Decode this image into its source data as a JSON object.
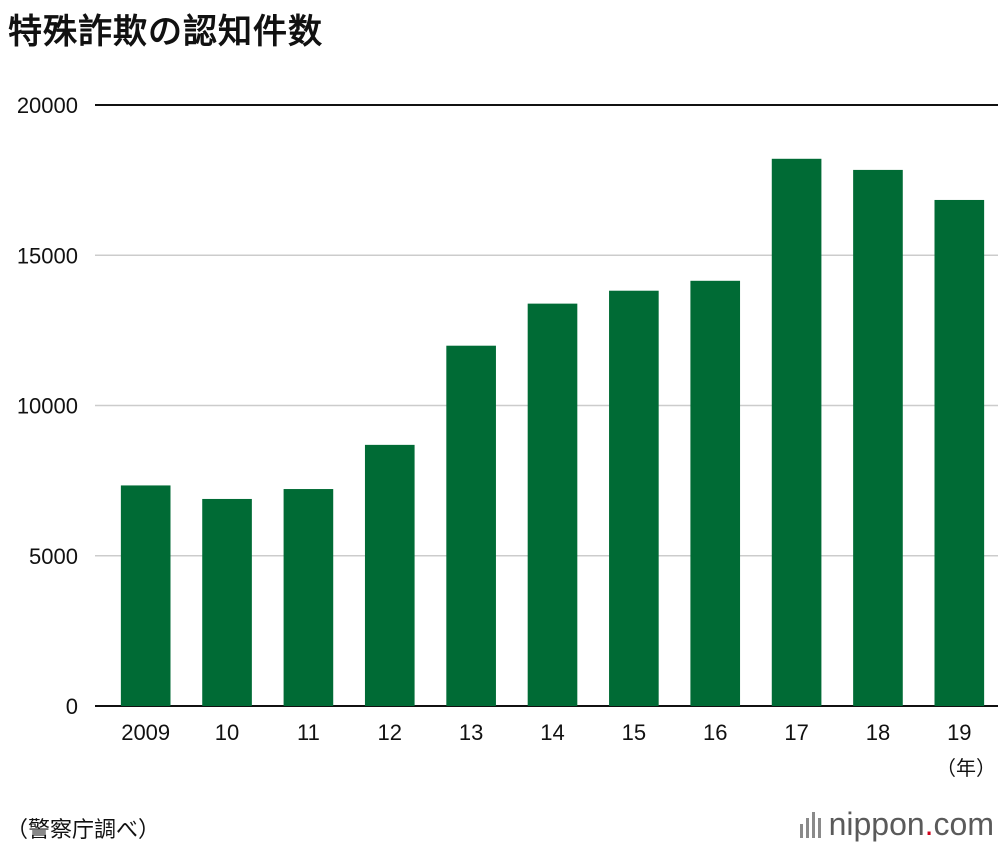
{
  "title": "特殊詐欺の認知件数",
  "source": "（警察庁調べ）",
  "brand": {
    "name": "nippon",
    "dot": ".",
    "tld": "com",
    "mark": "brand-logo-icon"
  },
  "colors": {
    "bar": "#006b35",
    "grid": "#cccccc",
    "axis": "#111111"
  },
  "chart_data": {
    "type": "bar",
    "categories": [
      "2009",
      "10",
      "11",
      "12",
      "13",
      "14",
      "15",
      "16",
      "17",
      "18",
      "19"
    ],
    "values": [
      7340,
      6890,
      7220,
      8690,
      11990,
      13390,
      13820,
      14150,
      18210,
      17840,
      16840
    ],
    "x_unit": "（年）",
    "ylim": [
      0,
      20000
    ],
    "yticks": [
      0,
      5000,
      10000,
      15000,
      20000
    ],
    "grid": true
  }
}
